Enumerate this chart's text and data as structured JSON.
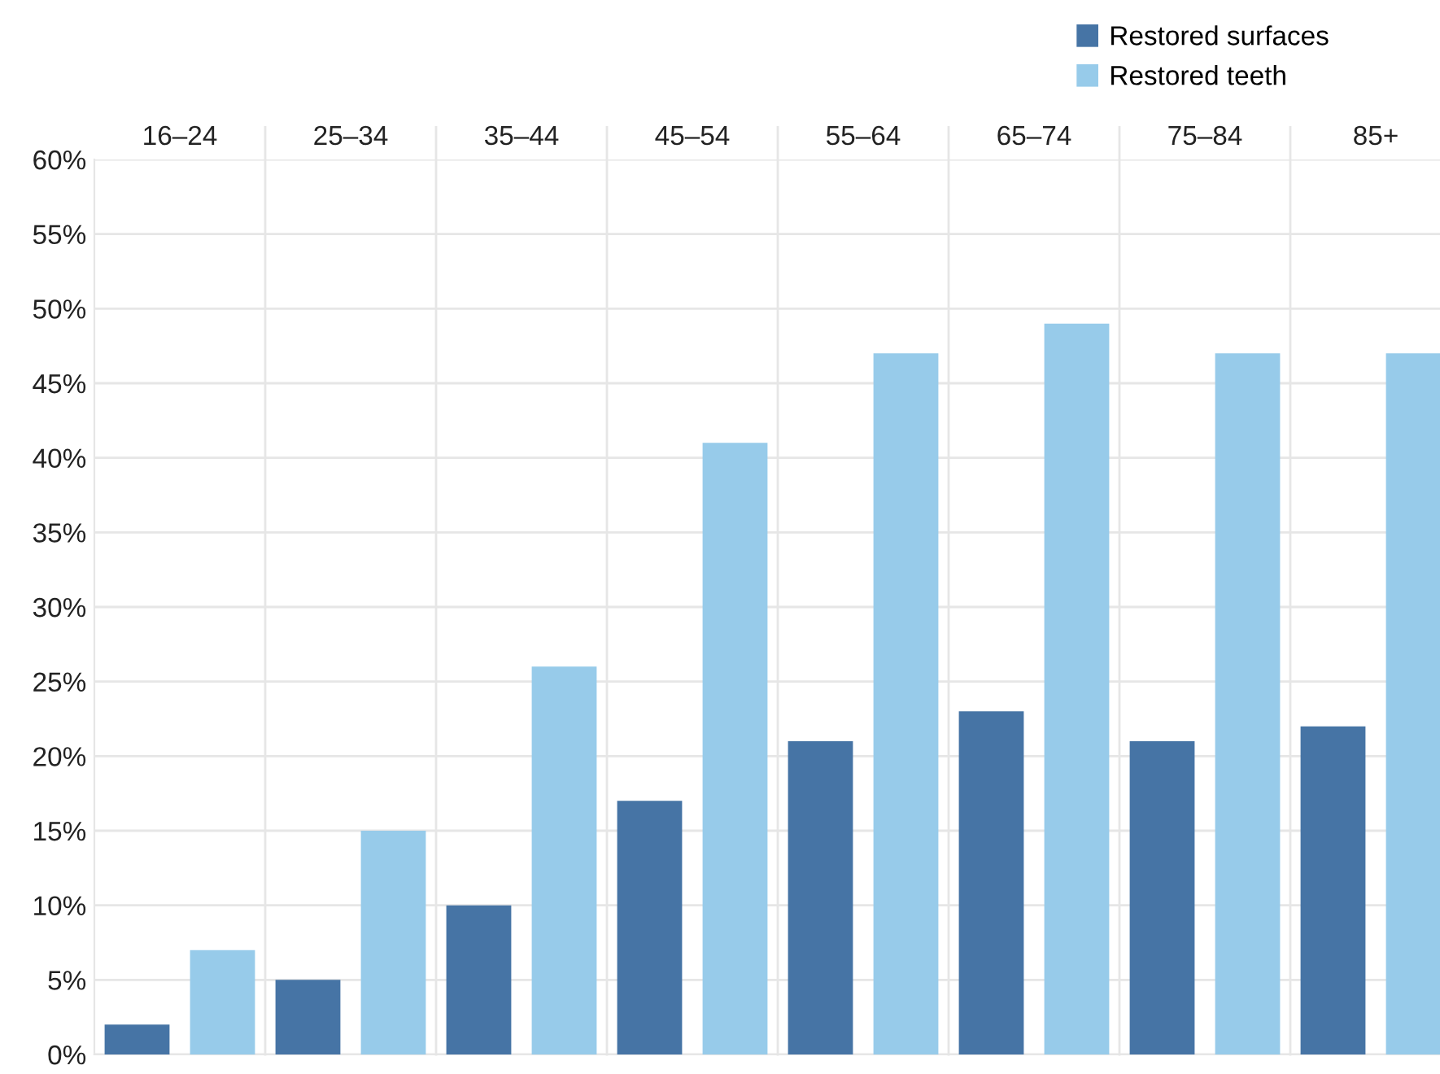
{
  "chart_data": {
    "type": "bar",
    "categories": [
      "16–24",
      "25–34",
      "35–44",
      "45–54",
      "55–64",
      "65–74",
      "75–84",
      "85+"
    ],
    "series": [
      {
        "name": "Restored surfaces",
        "color": "#4674a5",
        "values": [
          2,
          5,
          10,
          17,
          21,
          23,
          21,
          22
        ]
      },
      {
        "name": "Restored teeth",
        "color": "#97cbea",
        "values": [
          7,
          15,
          26,
          41,
          47,
          49,
          47,
          47
        ]
      }
    ],
    "ylim": [
      0,
      60
    ],
    "yticks": [
      {
        "value": 0,
        "label": "0%"
      },
      {
        "value": 5,
        "label": "5%"
      },
      {
        "value": 10,
        "label": "10%"
      },
      {
        "value": 15,
        "label": "15%"
      },
      {
        "value": 20,
        "label": "20%"
      },
      {
        "value": 25,
        "label": "25%"
      },
      {
        "value": 30,
        "label": "30%"
      },
      {
        "value": 35,
        "label": "35%"
      },
      {
        "value": 40,
        "label": "40%"
      },
      {
        "value": 45,
        "label": "45%"
      },
      {
        "value": 50,
        "label": "50%"
      },
      {
        "value": 55,
        "label": "55%"
      },
      {
        "value": 60,
        "label": "60%"
      }
    ],
    "grid": true,
    "legend": "top right"
  }
}
